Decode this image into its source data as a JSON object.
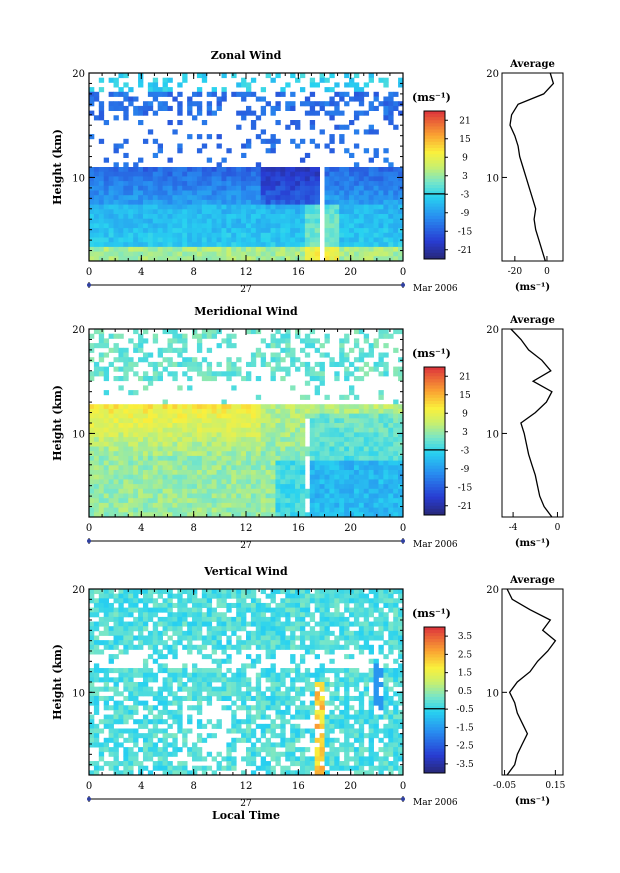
{
  "figure": {
    "local_time_label": "Local Time",
    "date_label": "Mar 2006",
    "day_label": "27",
    "unit_label": "(ms⁻¹)",
    "average_title": "Average",
    "height_label": "Height (km)"
  },
  "chart_data": [
    {
      "type": "heatmap",
      "title": "Zonal Wind",
      "ylabel": "Height (km)",
      "xlabel": "",
      "x_ticks": [
        "0",
        "4",
        "8",
        "12",
        "16",
        "20",
        "0"
      ],
      "y_ticks": [
        "20",
        "10"
      ],
      "ylim": [
        2,
        20
      ],
      "xlim": [
        0,
        24
      ],
      "colorbar": {
        "unit": "(ms⁻¹)",
        "ticks": [
          "21",
          "15",
          "9",
          "3",
          "-3",
          "-9",
          "-15",
          "-21"
        ],
        "range": [
          -24,
          24
        ]
      },
      "average": {
        "title": "Average",
        "x_ticks": [
          "-20",
          "0"
        ],
        "xlim": [
          -28,
          10
        ],
        "unit": "(ms⁻¹)",
        "y_ticks": [
          "20",
          "10"
        ],
        "profile_h": [
          2,
          3,
          4,
          5,
          6,
          7,
          8,
          9,
          10,
          11,
          12,
          13,
          14,
          15,
          16,
          17,
          18,
          19,
          20
        ],
        "profile_v": [
          -1,
          -3,
          -5,
          -7,
          -8,
          -7,
          -9,
          -11,
          -13,
          -15,
          -17,
          -18,
          -20,
          -23,
          -22,
          -18,
          -2,
          4,
          2
        ]
      }
    },
    {
      "type": "heatmap",
      "title": "Meridional Wind",
      "ylabel": "Height (km)",
      "xlabel": "",
      "x_ticks": [
        "0",
        "4",
        "8",
        "12",
        "16",
        "20",
        "0"
      ],
      "y_ticks": [
        "20",
        "10"
      ],
      "ylim": [
        2,
        20
      ],
      "xlim": [
        0,
        24
      ],
      "colorbar": {
        "unit": "(ms⁻¹)",
        "ticks": [
          "21",
          "15",
          "9",
          "3",
          "-3",
          "-9",
          "-15",
          "-21"
        ],
        "range": [
          -24,
          24
        ]
      },
      "average": {
        "title": "Average",
        "x_ticks": [
          "-4",
          "0"
        ],
        "xlim": [
          -5,
          0.5
        ],
        "unit": "(ms⁻¹)",
        "y_ticks": [
          "20",
          "10"
        ],
        "profile_h": [
          2,
          3,
          4,
          5,
          6,
          7,
          8,
          9,
          10,
          11,
          12,
          13,
          14,
          15,
          16,
          17,
          18,
          19,
          20
        ],
        "profile_v": [
          -0.5,
          -1.2,
          -1.6,
          -1.8,
          -2.0,
          -2.3,
          -2.6,
          -2.8,
          -3.0,
          -3.3,
          -2.0,
          -1.0,
          -0.5,
          -2.2,
          -0.6,
          -1.4,
          -2.6,
          -3.3,
          -4.2
        ]
      }
    },
    {
      "type": "heatmap",
      "title": "Vertical Wind",
      "ylabel": "Height (km)",
      "xlabel": "Local Time",
      "x_ticks": [
        "0",
        "4",
        "8",
        "12",
        "16",
        "20",
        "0"
      ],
      "y_ticks": [
        "20",
        "10"
      ],
      "ylim": [
        2,
        20
      ],
      "xlim": [
        0,
        24
      ],
      "colorbar": {
        "unit": "(ms⁻¹)",
        "ticks": [
          "3.5",
          "2.5",
          "1.5",
          "0.5",
          "-0.5",
          "-1.5",
          "-2.5",
          "-3.5"
        ],
        "range": [
          -4,
          4
        ]
      },
      "average": {
        "title": "Average",
        "x_ticks": [
          "-0.05",
          "0.15"
        ],
        "xlim": [
          -0.06,
          0.18
        ],
        "unit": "(ms⁻¹)",
        "y_ticks": [
          "20",
          "10"
        ],
        "profile_h": [
          2,
          3,
          4,
          5,
          6,
          7,
          8,
          9,
          10,
          11,
          12,
          13,
          14,
          15,
          16,
          17,
          18,
          19,
          20
        ],
        "profile_v": [
          -0.04,
          -0.01,
          0.0,
          0.02,
          0.04,
          0.02,
          0.0,
          -0.01,
          -0.03,
          0.0,
          0.05,
          0.08,
          0.12,
          0.15,
          0.1,
          0.13,
          0.05,
          -0.02,
          -0.04
        ]
      }
    }
  ]
}
